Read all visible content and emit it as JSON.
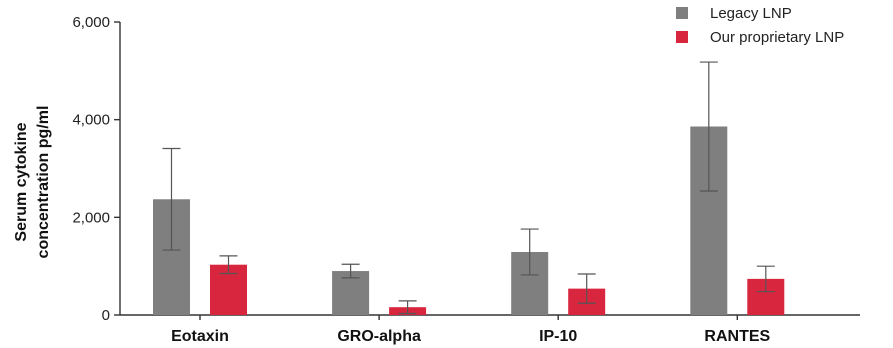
{
  "chart_data": {
    "type": "bar",
    "title": "",
    "xlabel": "",
    "ylabel_lines": [
      "Serum cytokine",
      "concentration pg/ml"
    ],
    "categories": [
      "Eotaxin",
      "GRO-alpha",
      "IP-10",
      "RANTES"
    ],
    "ylim": [
      0,
      6000
    ],
    "yticks": [
      0,
      2000,
      4000,
      6000
    ],
    "ytick_labels": [
      "0",
      "2,000",
      "4,000",
      "6,000"
    ],
    "grid": false,
    "legend_position": "top-right",
    "series": [
      {
        "name": "Legacy LNP",
        "color": "#7f7f7f",
        "values": [
          2370,
          900,
          1290,
          3860
        ],
        "error": [
          1040,
          140,
          470,
          1320
        ]
      },
      {
        "name": "Our proprietary LNP",
        "color": "#d9263f",
        "values": [
          1030,
          160,
          540,
          740
        ],
        "error": [
          180,
          130,
          300,
          260
        ]
      }
    ]
  }
}
